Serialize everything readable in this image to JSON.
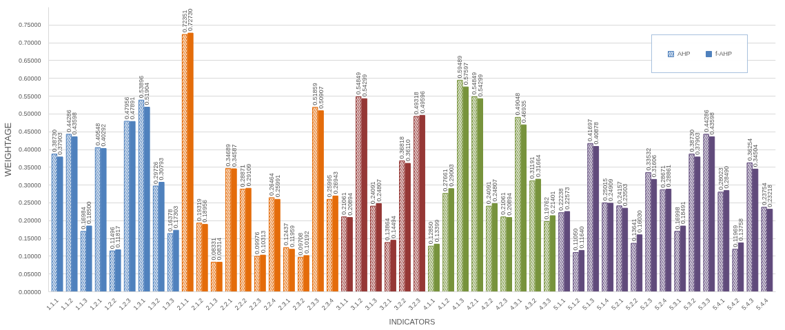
{
  "chart_data": {
    "type": "bar",
    "xlabel": "INDICATORS",
    "ylabel": "WEIGHTAGE",
    "categories": [
      "1.1.1",
      "1.1.2",
      "1.1.3",
      "1.2.1",
      "1.2.2",
      "1.2.3",
      "1.3.1",
      "1.3.2",
      "1.3.3",
      "2.1.1",
      "2.1.2",
      "2.1.3",
      "2.2.1",
      "2.2.2",
      "2.2.3",
      "2.2.4",
      "2.3.1",
      "2.3.2",
      "2.3.3",
      "2.3.4",
      "3.1.1",
      "3.1.2",
      "3.1.3",
      "3.2.1",
      "3.2.2",
      "3.2.3",
      "4.1.1",
      "4.1.2",
      "4.1.3",
      "4.2.1",
      "4.2.2",
      "4.2.3",
      "4.3.1",
      "4.3.2",
      "4.3.3",
      "5.1.1",
      "5.1.2",
      "5.1.3",
      "5.1.4",
      "5.2.1",
      "5.2.2",
      "5.2.3",
      "5.2.4",
      "5.3.1",
      "5.3.2",
      "5.3.3",
      "5.4.1",
      "5.4.2",
      "5.4.3",
      "5.4.4"
    ],
    "series": [
      {
        "name": "AHP",
        "value_labels": [
          "0.38730",
          "0.44286",
          "0.16984",
          "0.40548",
          "0.11496",
          "0.47956",
          "0.53896",
          "0.29726",
          "0.16378",
          "0.72351",
          "0.19319",
          "0.08331",
          "0.34689",
          "0.28871",
          "0.09976",
          "0.26464",
          "0.12437",
          "0.09708",
          "0.51859",
          "0.25995",
          "0.21061",
          "0.54849",
          "0.24091",
          "0.13864",
          "0.36818",
          "0.49318",
          "0.12850",
          "0.27661",
          "0.59489",
          "0.54849",
          "0.24091",
          "0.21061",
          "0.49048",
          "0.31191",
          "0.19762",
          "0.22238",
          "0.11050",
          "0.41697",
          "0.25015",
          "0.24157",
          "0.13641",
          "0.33532",
          "0.28671",
          "0.16998",
          "0.38730",
          "0.44286",
          "0.28023",
          "0.11969",
          "0.36254",
          "0.23754"
        ],
        "colors": [
          "#4f81bd",
          "#4f81bd",
          "#4f81bd",
          "#4f81bd",
          "#4f81bd",
          "#4f81bd",
          "#4f81bd",
          "#4f81bd",
          "#4f81bd",
          "#e46c0a",
          "#e46c0a",
          "#e46c0a",
          "#e46c0a",
          "#e46c0a",
          "#e46c0a",
          "#e46c0a",
          "#e46c0a",
          "#e46c0a",
          "#e46c0a",
          "#e46c0a",
          "#953735",
          "#953735",
          "#953735",
          "#953735",
          "#953735",
          "#953735",
          "#77933c",
          "#77933c",
          "#77933c",
          "#77933c",
          "#77933c",
          "#77933c",
          "#77933c",
          "#77933c",
          "#77933c",
          "#604a7b",
          "#604a7b",
          "#604a7b",
          "#604a7b",
          "#604a7b",
          "#604a7b",
          "#604a7b",
          "#604a7b",
          "#604a7b",
          "#604a7b",
          "#604a7b",
          "#604a7b",
          "#604a7b",
          "#604a7b",
          "#604a7b"
        ],
        "values": [
          0.3873,
          0.44286,
          0.16984,
          0.40548,
          0.11496,
          0.47956,
          0.53896,
          0.29726,
          0.16378,
          0.72351,
          0.19319,
          0.08331,
          0.34689,
          0.28871,
          0.09976,
          0.26464,
          0.12437,
          0.09708,
          0.51859,
          0.25995,
          0.21061,
          0.54849,
          0.24091,
          0.13864,
          0.36818,
          0.49318,
          0.1285,
          0.27661,
          0.59489,
          0.54849,
          0.24091,
          0.21061,
          0.49048,
          0.31191,
          0.19762,
          0.22238,
          0.1105,
          0.41697,
          0.25015,
          0.24157,
          0.13641,
          0.33532,
          0.28671,
          0.16998,
          0.3873,
          0.44286,
          0.28023,
          0.11969,
          0.36254,
          0.23754
        ]
      },
      {
        "name": "f-AHP",
        "value_labels": [
          "0.37903",
          "0.43598",
          "0.18500",
          "0.40292",
          "0.11817",
          "0.47891",
          "0.51904",
          "0.30793",
          "0.17303",
          "0.72730",
          "0.18956",
          "0.08314",
          "0.34587",
          "0.29109",
          "0.10313",
          "0.25991",
          "0.11959",
          "0.10192",
          "0.50907",
          "0.26943",
          "0.20894",
          "0.54299",
          "0.24807",
          "0.14494",
          "0.36110",
          "0.49596",
          "0.13399",
          "0.29003",
          "0.57597",
          "0.54299",
          "0.24807",
          "0.20894",
          "0.46935",
          "0.31664",
          "0.21401",
          "0.22573",
          "0.11640",
          "0.40878",
          "0.24909",
          "0.23503",
          "0.16030",
          "0.31606",
          "0.28861",
          "0.18491",
          "0.37903",
          "0.43598",
          "0.28490",
          "0.13758",
          "0.34504",
          "0.23218"
        ],
        "colors": [
          "#4f81bd",
          "#4f81bd",
          "#4f81bd",
          "#4f81bd",
          "#4f81bd",
          "#4f81bd",
          "#4f81bd",
          "#4f81bd",
          "#4f81bd",
          "#e46c0a",
          "#e46c0a",
          "#e46c0a",
          "#e46c0a",
          "#e46c0a",
          "#e46c0a",
          "#e46c0a",
          "#e46c0a",
          "#e46c0a",
          "#e46c0a",
          "#e46c0a",
          "#953735",
          "#953735",
          "#953735",
          "#953735",
          "#953735",
          "#953735",
          "#77933c",
          "#77933c",
          "#77933c",
          "#77933c",
          "#77933c",
          "#77933c",
          "#77933c",
          "#77933c",
          "#77933c",
          "#604a7b",
          "#604a7b",
          "#604a7b",
          "#604a7b",
          "#604a7b",
          "#604a7b",
          "#604a7b",
          "#604a7b",
          "#604a7b",
          "#604a7b",
          "#604a7b",
          "#604a7b",
          "#604a7b",
          "#604a7b",
          "#604a7b"
        ],
        "values": [
          0.37903,
          0.43598,
          0.185,
          0.40292,
          0.11817,
          0.47891,
          0.51904,
          0.30793,
          0.17303,
          0.7273,
          0.18956,
          0.08314,
          0.34587,
          0.29109,
          0.10313,
          0.25991,
          0.11959,
          0.10192,
          0.50907,
          0.26943,
          0.20894,
          0.54299,
          0.24807,
          0.14494,
          0.3611,
          0.49596,
          0.13399,
          0.29003,
          0.57597,
          0.54299,
          0.24807,
          0.20894,
          0.46935,
          0.31664,
          0.21401,
          0.22573,
          0.1164,
          0.40878,
          0.24909,
          0.23503,
          0.1603,
          0.31606,
          0.28861,
          0.18491,
          0.37903,
          0.43598,
          0.2849,
          0.13758,
          0.34504,
          0.23218
        ]
      }
    ],
    "ylim": [
      0,
      0.8
    ],
    "yticks": [
      {
        "value": 0,
        "label": "0.00000"
      },
      {
        "value": 0.05,
        "label": "0.05000"
      },
      {
        "value": 0.1,
        "label": "0.10000"
      },
      {
        "value": 0.15,
        "label": "0.15000"
      },
      {
        "value": 0.2,
        "label": "0.20000"
      },
      {
        "value": 0.25,
        "label": "0.25000"
      },
      {
        "value": 0.3,
        "label": "0.30000"
      },
      {
        "value": 0.35,
        "label": "0.35000"
      },
      {
        "value": 0.4,
        "label": "0.40000"
      },
      {
        "value": 0.45,
        "label": "0.45000"
      },
      {
        "value": 0.5,
        "label": "0.50000"
      },
      {
        "value": 0.55,
        "label": "0.55000"
      },
      {
        "value": 0.6,
        "label": "0.60000"
      },
      {
        "value": 0.65,
        "label": "0.65000"
      },
      {
        "value": 0.7,
        "label": "0.70000"
      },
      {
        "value": 0.75,
        "label": "0.75000"
      }
    ],
    "grid": "y",
    "legend": "top right"
  }
}
